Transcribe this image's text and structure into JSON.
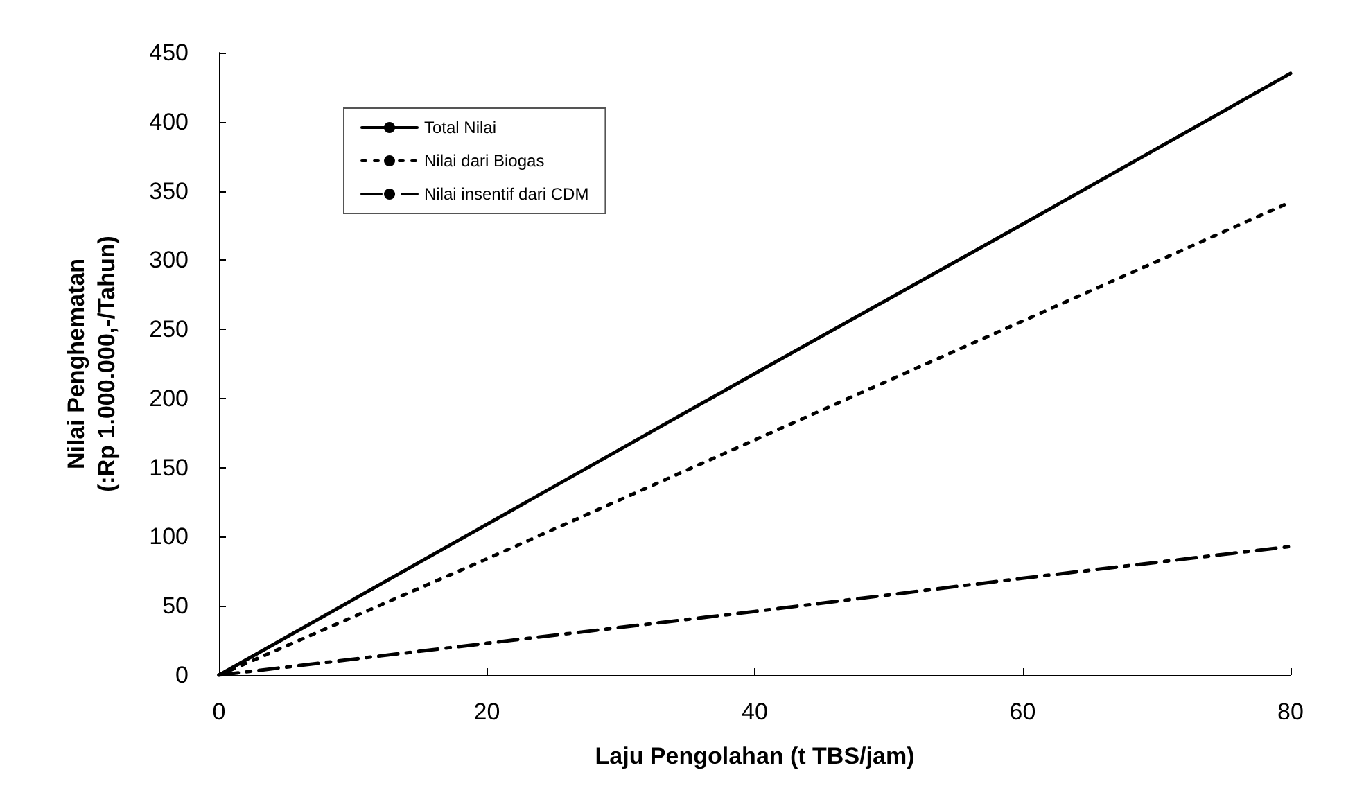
{
  "chart_data": {
    "type": "line",
    "xlabel": "Laju Pengolahan (t TBS/jam)",
    "ylabel": "Nilai Penghematan\n(:Rp 1.000.000,-/Tahun)",
    "x": [
      0,
      20,
      40,
      60,
      80
    ],
    "series": [
      {
        "name": "Total Nilai",
        "color": "#000000",
        "line_style": "solid",
        "values": [
          0,
          109,
          218,
          326,
          435
        ]
      },
      {
        "name": "Nilai dari Biogas",
        "color": "#000000",
        "line_style": "dotted",
        "values": [
          0,
          84,
          170,
          256,
          342
        ]
      },
      {
        "name": "Nilai insentif dari CDM",
        "color": "#000000",
        "line_style": "dashed",
        "values": [
          0,
          23,
          46,
          70,
          93
        ]
      }
    ],
    "xlim": [
      0,
      80
    ],
    "xticks": [
      0,
      20,
      40,
      60,
      80
    ],
    "ylim": [
      0,
      450
    ],
    "yticks": [
      0,
      50,
      100,
      150,
      200,
      250,
      300,
      350,
      400,
      450
    ],
    "grid": false,
    "legend": "top left",
    "marker": "none"
  }
}
